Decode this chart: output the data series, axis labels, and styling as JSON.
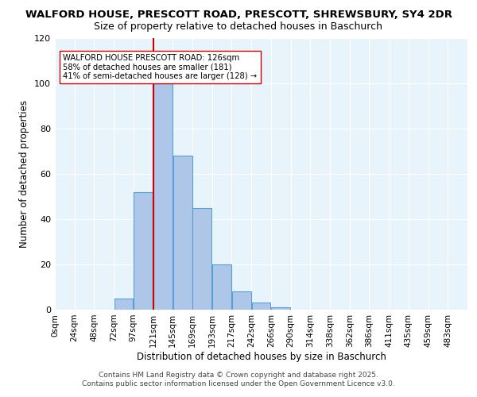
{
  "title_line1": "WALFORD HOUSE, PRESCOTT ROAD, PRESCOTT, SHREWSBURY, SY4 2DR",
  "title_line2": "Size of property relative to detached houses in Baschurch",
  "xlabel": "Distribution of detached houses by size in Baschurch",
  "ylabel": "Number of detached properties",
  "xtick_labels": [
    "0sqm",
    "24sqm",
    "48sqm",
    "72sqm",
    "97sqm",
    "121sqm",
    "145sqm",
    "169sqm",
    "193sqm",
    "217sqm",
    "242sqm",
    "266sqm",
    "290sqm",
    "314sqm",
    "338sqm",
    "362sqm",
    "386sqm",
    "411sqm",
    "435sqm",
    "459sqm",
    "483sqm"
  ],
  "bar_heights": [
    0,
    0,
    0,
    5,
    52,
    100,
    68,
    45,
    20,
    8,
    3,
    1,
    0,
    0,
    0,
    0,
    0,
    0,
    0,
    0
  ],
  "bar_color": "#aec6e8",
  "bar_edgecolor": "#5a9fd4",
  "property_value": 5,
  "property_line_color": "#cc0000",
  "annotation_line1": "WALFORD HOUSE PRESCOTT ROAD: 126sqm",
  "annotation_line2": "58% of detached houses are smaller (181)",
  "annotation_line3": "41% of semi-detached houses are larger (128) →",
  "annotation_box_edgecolor": "#cc0000",
  "annotation_box_facecolor": "#ffffff",
  "ylim_max": 120,
  "yticks": [
    0,
    20,
    40,
    60,
    80,
    100,
    120
  ],
  "background_color": "#e8f4fb",
  "footer_line1": "Contains HM Land Registry data © Crown copyright and database right 2025.",
  "footer_line2": "Contains public sector information licensed under the Open Government Licence v3.0.",
  "title_fontsize": 9.5,
  "subtitle_fontsize": 9,
  "axis_label_fontsize": 8.5,
  "tick_fontsize": 7.5,
  "annotation_fontsize": 7.2,
  "footer_fontsize": 6.5
}
